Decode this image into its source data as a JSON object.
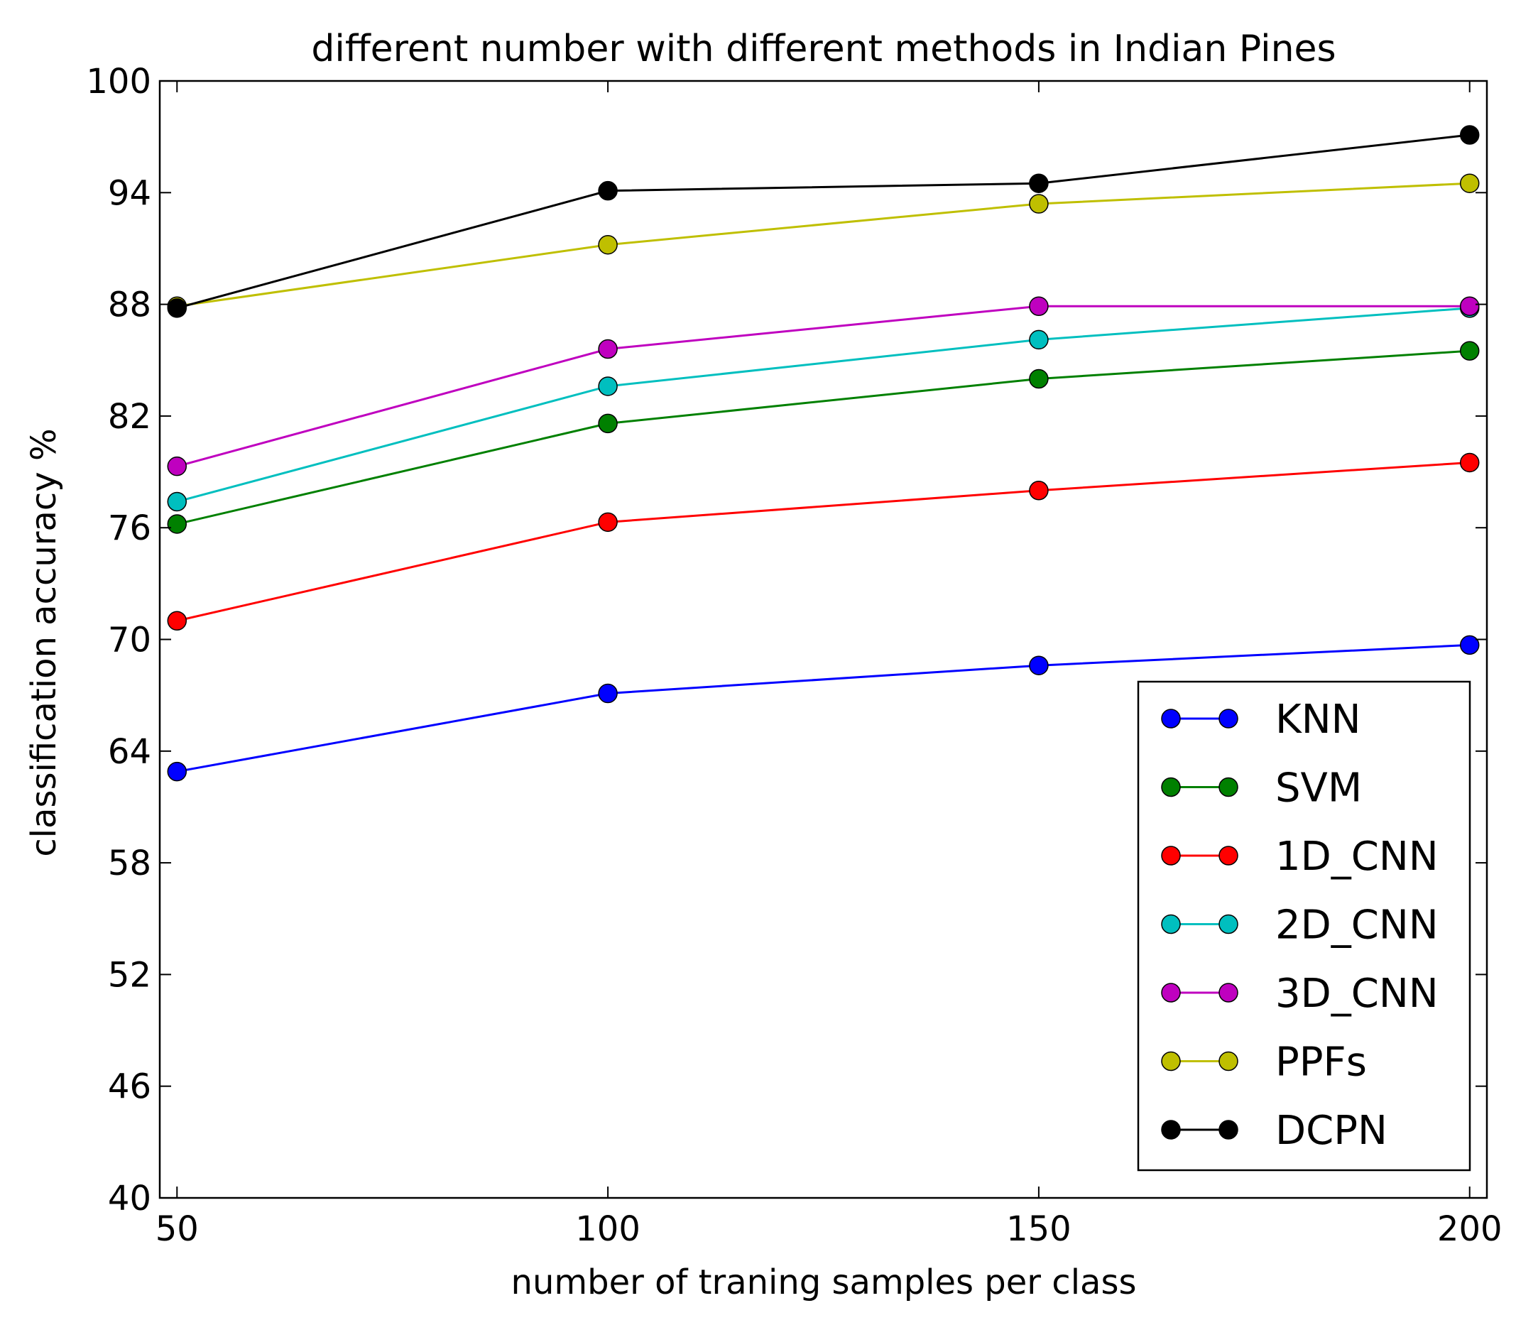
{
  "chart_data": {
    "type": "line",
    "title": "different number with different methods in Indian Pines",
    "xlabel": "number of traning samples per class",
    "ylabel": "classification accuracy %",
    "x": [
      50,
      100,
      150,
      200
    ],
    "xticks": [
      "50",
      "100",
      "150",
      "200"
    ],
    "xlim": [
      48,
      202
    ],
    "yticks": [
      "40",
      "46",
      "52",
      "58",
      "64",
      "70",
      "76",
      "82",
      "88",
      "94",
      "100"
    ],
    "ylim": [
      40,
      100
    ],
    "grid": false,
    "legend_position": "lower right",
    "series": [
      {
        "name": "KNN",
        "color": "#0000ff",
        "values": [
          62.9,
          67.1,
          68.6,
          69.7
        ]
      },
      {
        "name": "SVM",
        "color": "#008000",
        "values": [
          76.2,
          81.6,
          84.0,
          85.5
        ]
      },
      {
        "name": "1D_CNN",
        "color": "#ff0000",
        "values": [
          71.0,
          76.3,
          78.0,
          79.5
        ]
      },
      {
        "name": "2D_CNN",
        "color": "#00bfbf",
        "values": [
          77.4,
          83.6,
          86.1,
          87.8
        ]
      },
      {
        "name": "3D_CNN",
        "color": "#bf00bf",
        "values": [
          79.3,
          85.6,
          87.9,
          87.9
        ]
      },
      {
        "name": "PPFs",
        "color": "#bfbf00",
        "values": [
          87.9,
          91.2,
          93.4,
          94.5
        ]
      },
      {
        "name": "DCPN",
        "color": "#000000",
        "values": [
          87.8,
          94.1,
          94.5,
          97.1
        ]
      }
    ]
  }
}
